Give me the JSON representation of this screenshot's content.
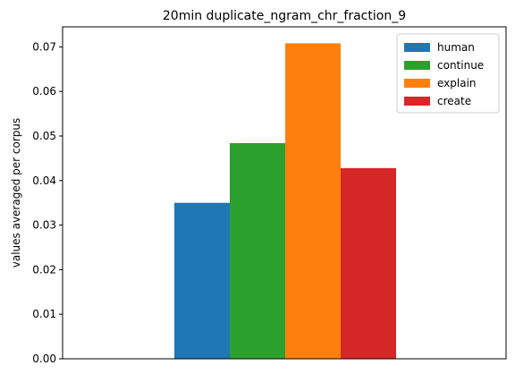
{
  "chart_data": {
    "type": "bar",
    "title": "20min duplicate_ngram_chr_fraction_9",
    "xlabel": "",
    "ylabel": "values averaged per corpus",
    "ylim": [
      0,
      0.0745
    ],
    "yticks": [
      0.0,
      0.01,
      0.02,
      0.03,
      0.04,
      0.05,
      0.06,
      0.07
    ],
    "ytick_labels": [
      "0.00",
      "0.01",
      "0.02",
      "0.03",
      "0.04",
      "0.05",
      "0.06",
      "0.07"
    ],
    "categories": [
      ""
    ],
    "series": [
      {
        "name": "human",
        "values": [
          0.035
        ],
        "color": "#1f77b4"
      },
      {
        "name": "continue",
        "values": [
          0.0484
        ],
        "color": "#2ca02c"
      },
      {
        "name": "explain",
        "values": [
          0.0708
        ],
        "color": "#ff7f0e"
      },
      {
        "name": "create",
        "values": [
          0.0428
        ],
        "color": "#d62728"
      }
    ],
    "legend": "top-right",
    "grid": false
  }
}
